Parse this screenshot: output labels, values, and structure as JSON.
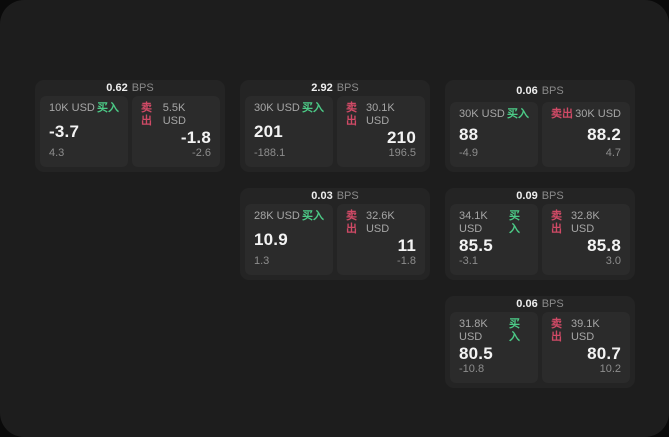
{
  "labels": {
    "buy": "买入",
    "sell": "卖出",
    "bps_unit": "BPS"
  },
  "colors": {
    "panel_bg": "#1d1d1d",
    "card_bg": "#242424",
    "cell_bg": "#2b2b2b",
    "buy_green": "#4ccb87",
    "sell_red": "#d04a66"
  },
  "cards": [
    {
      "bps": "0.62",
      "buy": {
        "size": "10K USD",
        "price": "-3.7",
        "delta": "4.3"
      },
      "sell": {
        "size": "5.5K USD",
        "price": "-1.8",
        "delta": "-2.6"
      }
    },
    {
      "bps": "2.92",
      "buy": {
        "size": "30K USD",
        "price": "201",
        "delta": "-188.1"
      },
      "sell": {
        "size": "30.1K USD",
        "price": "210",
        "delta": "196.5"
      }
    },
    {
      "bps": "0.06",
      "buy": {
        "size": "30K USD",
        "price": "88",
        "delta": "-4.9"
      },
      "sell": {
        "size": "30K USD",
        "price": "88.2",
        "delta": "4.7"
      }
    },
    {
      "bps": "0.03",
      "buy": {
        "size": "28K USD",
        "price": "10.9",
        "delta": "1.3"
      },
      "sell": {
        "size": "32.6K USD",
        "price": "11",
        "delta": "-1.8"
      }
    },
    {
      "bps": "0.09",
      "buy": {
        "size": "34.1K USD",
        "price": "85.5",
        "delta": "-3.1"
      },
      "sell": {
        "size": "32.8K USD",
        "price": "85.8",
        "delta": "3.0"
      }
    },
    {
      "bps": "0.06",
      "buy": {
        "size": "31.8K USD",
        "price": "80.5",
        "delta": "-10.8"
      },
      "sell": {
        "size": "39.1K USD",
        "price": "80.7",
        "delta": "10.2"
      }
    }
  ]
}
